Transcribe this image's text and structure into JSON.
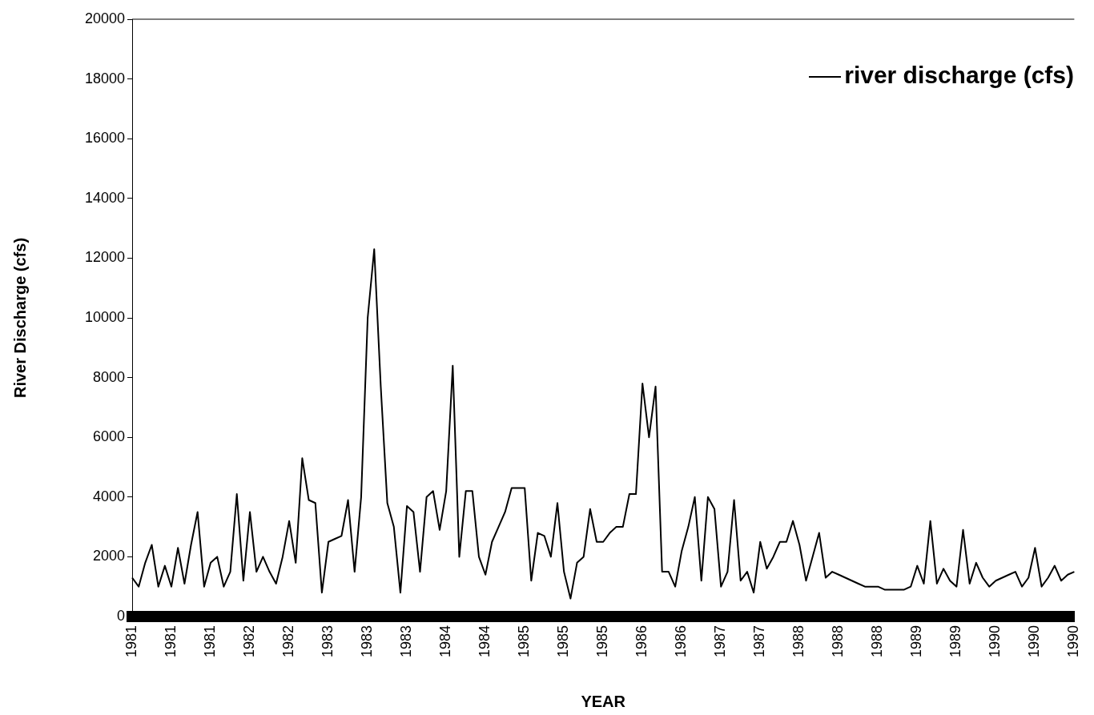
{
  "chart_data": {
    "type": "line",
    "xlabel": "YEAR",
    "ylabel": "River Discharge (cfs)",
    "ylim": [
      0,
      20000
    ],
    "yticks": [
      0,
      2000,
      4000,
      6000,
      8000,
      10000,
      12000,
      14000,
      16000,
      18000,
      20000
    ],
    "categories": [
      "1981",
      null,
      null,
      null,
      null,
      null,
      "1981",
      null,
      null,
      null,
      null,
      null,
      "1981",
      null,
      null,
      null,
      null,
      null,
      "1982",
      null,
      null,
      null,
      null,
      null,
      "1982",
      null,
      null,
      null,
      null,
      null,
      "1983",
      null,
      null,
      null,
      null,
      null,
      "1983",
      null,
      null,
      null,
      null,
      null,
      "1983",
      null,
      null,
      null,
      null,
      null,
      "1984",
      null,
      null,
      null,
      null,
      null,
      "1984",
      null,
      null,
      null,
      null,
      null,
      "1985",
      null,
      null,
      null,
      null,
      null,
      "1985",
      null,
      null,
      null,
      null,
      null,
      "1985",
      null,
      null,
      null,
      null,
      null,
      "1986",
      null,
      null,
      null,
      null,
      null,
      "1986",
      null,
      null,
      null,
      null,
      null,
      "1987",
      null,
      null,
      null,
      null,
      null,
      "1987",
      null,
      null,
      null,
      null,
      null,
      "1988",
      null,
      null,
      null,
      null,
      null,
      "1988",
      null,
      null,
      null,
      null,
      null,
      "1988",
      null,
      null,
      null,
      null,
      null,
      "1989",
      null,
      null,
      null,
      null,
      null,
      "1989",
      null,
      null,
      null,
      null,
      null,
      "1990",
      null,
      null,
      null,
      null,
      null,
      "1990",
      null,
      null,
      null,
      null,
      null,
      "1990"
    ],
    "grid": false,
    "legend": "top right",
    "marker": "none",
    "line_style": "solid",
    "series": [
      {
        "name": "river discharge (cfs)",
        "color": "#000000",
        "values": [
          1300,
          1000,
          1800,
          2400,
          1000,
          1700,
          1000,
          2300,
          1100,
          2400,
          3500,
          1000,
          1800,
          2000,
          1000,
          1500,
          4100,
          1200,
          3500,
          1500,
          2000,
          1500,
          1100,
          2000,
          3200,
          1800,
          5300,
          3900,
          3800,
          800,
          2500,
          2600,
          2700,
          3900,
          1500,
          4000,
          10000,
          12300,
          7700,
          3800,
          3000,
          800,
          3700,
          3500,
          1500,
          4000,
          4200,
          2900,
          4200,
          8400,
          2000,
          4200,
          4200,
          2000,
          1400,
          2500,
          3000,
          3500,
          4300,
          4300,
          4300,
          1200,
          2800,
          2700,
          2000,
          3800,
          1500,
          600,
          1800,
          2000,
          3600,
          2500,
          2500,
          2800,
          3000,
          3000,
          4100,
          4100,
          7800,
          6000,
          7700,
          1500,
          1500,
          1000,
          2200,
          3000,
          4000,
          1200,
          4000,
          3600,
          1000,
          1500,
          3900,
          1200,
          1500,
          800,
          2500,
          1600,
          2000,
          2500,
          2500,
          3200,
          2400,
          1200,
          2000,
          2800,
          1300,
          1500,
          1400,
          1300,
          1200,
          1100,
          1000,
          1000,
          1000,
          900,
          900,
          900,
          900,
          1000,
          1700,
          1100,
          3200,
          1100,
          1600,
          1200,
          1000,
          2900,
          1100,
          1800,
          1300,
          1000,
          1200,
          1300,
          1400,
          1500,
          1000,
          1300,
          2300,
          1000,
          1300,
          1700,
          1200,
          1400,
          1500
        ]
      }
    ]
  }
}
